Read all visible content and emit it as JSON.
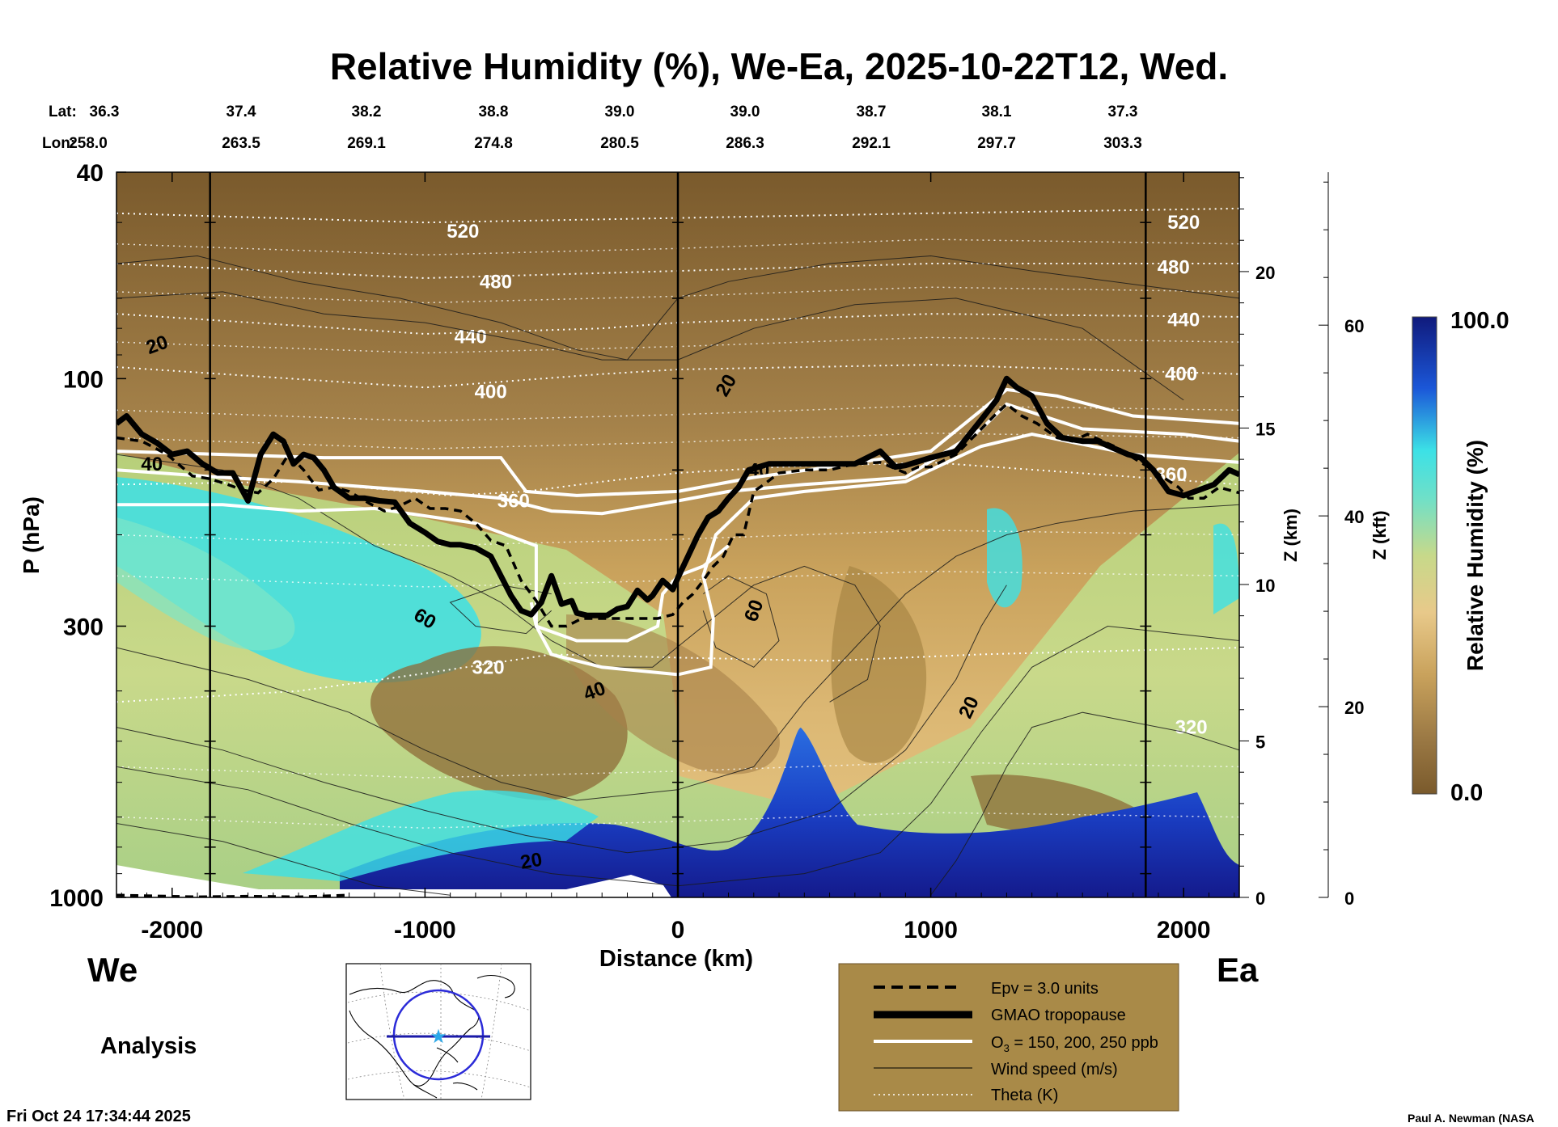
{
  "chart_data": {
    "type": "heatmap",
    "title": "Relative Humidity (%), We-Ea, 2025-10-22T12, Wed.",
    "xlabel": "Distance (km)",
    "ylabel": "P (hPa)",
    "y2label": "Z (km)",
    "y3label": "Z (kft)",
    "colorbar_label": "Relative Humidity (%)",
    "colorbar_max_label": "100.0",
    "colorbar_min_label": "0.0",
    "xlim": [
      -2220,
      2220
    ],
    "ylim": [
      1000,
      40
    ],
    "xticks": [
      -2000,
      -1000,
      0,
      1000,
      2000
    ],
    "xtick_labels": [
      "-2000",
      "-1000",
      "0",
      "1000",
      "2000"
    ],
    "yticks": [
      40,
      100,
      300,
      1000
    ],
    "ytick_labels": [
      "40",
      "100",
      "300",
      "1000"
    ],
    "z_km_ticks": [
      0,
      5,
      10,
      15,
      20
    ],
    "z_km_tick_labels": [
      "0",
      "5",
      "10",
      "15",
      "20"
    ],
    "z_kft_ticks": [
      0,
      20,
      40,
      60
    ],
    "z_kft_tick_labels": [
      "0",
      "20",
      "40",
      "60"
    ],
    "lat_label": "Lat:",
    "lon_label": "Lon:",
    "lats": [
      "36.3",
      "37.4",
      "38.2",
      "38.8",
      "39.0",
      "39.0",
      "38.7",
      "38.1",
      "37.3"
    ],
    "lons": [
      "258.0",
      "263.5",
      "269.1",
      "274.8",
      "280.5",
      "286.3",
      "292.1",
      "297.7",
      "303.3"
    ],
    "vertical_markers_km": [
      -1850,
      0,
      1850
    ],
    "tropopause_x": [
      -2220,
      -2180,
      -2120,
      -2060,
      -2000,
      -1940,
      -1880,
      -1820,
      -1760,
      -1700,
      -1650,
      -1600,
      -1560,
      -1520,
      -1480,
      -1440,
      -1400,
      -1360,
      -1300,
      -1240,
      -1180,
      -1120,
      -1060,
      -1000,
      -950,
      -900,
      -860,
      -800,
      -740,
      -700,
      -660,
      -620,
      -580,
      -540,
      -500,
      -460,
      -420,
      -400,
      -360,
      -320,
      -280,
      -240,
      -200,
      -160,
      -120,
      -100,
      -60,
      -20,
      0,
      40,
      80,
      120,
      160,
      200,
      240,
      280,
      320,
      360,
      400,
      500,
      600,
      700,
      800,
      860,
      900,
      1000,
      1100,
      1200,
      1260,
      1300,
      1340,
      1400,
      1460,
      1520,
      1600,
      1660,
      1720,
      1780,
      1830,
      1880,
      1940,
      2000,
      2060,
      2120,
      2180,
      2220
    ],
    "tropopause_p": [
      122,
      118,
      128,
      133,
      140,
      138,
      146,
      152,
      152,
      172,
      140,
      128,
      132,
      146,
      140,
      142,
      150,
      162,
      170,
      170,
      172,
      173,
      190,
      198,
      206,
      209,
      209,
      212,
      220,
      240,
      262,
      280,
      285,
      270,
      240,
      272,
      268,
      283,
      286,
      286,
      286,
      278,
      275,
      256,
      267,
      262,
      245,
      255,
      242,
      220,
      200,
      185,
      180,
      170,
      162,
      150,
      148,
      146,
      146,
      146,
      146,
      146,
      138,
      148,
      147,
      142,
      138,
      120,
      110,
      100,
      104,
      108,
      122,
      130,
      132,
      132,
      136,
      140,
      142,
      150,
      165,
      168,
      164,
      160,
      150,
      153
    ],
    "epv_x": [
      -2220,
      -2120,
      -2020,
      -1920,
      -1850,
      -1780,
      -1720,
      -1660,
      -1600,
      -1540,
      -1480,
      -1420,
      -1360,
      -1300,
      -1220,
      -1160,
      -1100,
      -1040,
      -980,
      -920,
      -860,
      -800,
      -740,
      -680,
      -620,
      -560,
      -500,
      -440,
      -380,
      -320,
      -260,
      -200,
      -140,
      -80,
      -20,
      20,
      60,
      100,
      140,
      180,
      220,
      260,
      300,
      340,
      400,
      500,
      600,
      700,
      800,
      900,
      950,
      1000,
      1100,
      1200,
      1250,
      1300,
      1360,
      1420,
      1500,
      1560,
      1620,
      1680,
      1740,
      1800,
      1860,
      1920,
      1980,
      2020,
      2080,
      2140,
      2220
    ],
    "epv_p": [
      130,
      132,
      140,
      154,
      156,
      160,
      164,
      166,
      156,
      140,
      150,
      164,
      162,
      165,
      174,
      180,
      176,
      170,
      178,
      178,
      180,
      190,
      205,
      210,
      245,
      268,
      300,
      300,
      290,
      290,
      290,
      290,
      290,
      290,
      285,
      270,
      260,
      245,
      230,
      220,
      200,
      200,
      165,
      160,
      152,
      150,
      150,
      146,
      145,
      152,
      148,
      148,
      140,
      125,
      118,
      112,
      118,
      122,
      130,
      132,
      128,
      132,
      136,
      142,
      148,
      155,
      162,
      170,
      170,
      162,
      166
    ],
    "o3_contours_ppb": [
      150,
      200,
      250
    ],
    "theta_contours_K": [
      320,
      360,
      400,
      440,
      480,
      520
    ],
    "wind_contours_ms": [
      20,
      40,
      60
    ],
    "legend": [
      {
        "style": "dashed",
        "label": "Epv = 3.0 units"
      },
      {
        "style": "thick",
        "label": "GMAO tropopause"
      },
      {
        "style": "white",
        "label": "O3 = 150, 200, 250 ppb"
      },
      {
        "style": "thin",
        "label": "Wind speed (m/s)"
      },
      {
        "style": "dotted",
        "label": "Theta (K)"
      }
    ],
    "legend_o3_prefix": "O",
    "legend_o3_sub": "3",
    "legend_o3_suffix": " = 150, 200, 250 ppb"
  },
  "labels": {
    "west": "We",
    "east": "Ea",
    "analysis": "Analysis",
    "timestamp": "Fri Oct 24 17:34:44 2025",
    "credit": "Paul A. Newman (NASA"
  },
  "colors": {
    "brown_dark": "#6f5025",
    "brown_mid": "#9c7a45",
    "tan": "#c9a25c",
    "tan_light": "#e2c27e",
    "green": "#b9d27c",
    "cyan": "#3ce1e6",
    "blue": "#1b57d8",
    "navy": "#141a8c",
    "legend_bg": "#a98a48"
  }
}
